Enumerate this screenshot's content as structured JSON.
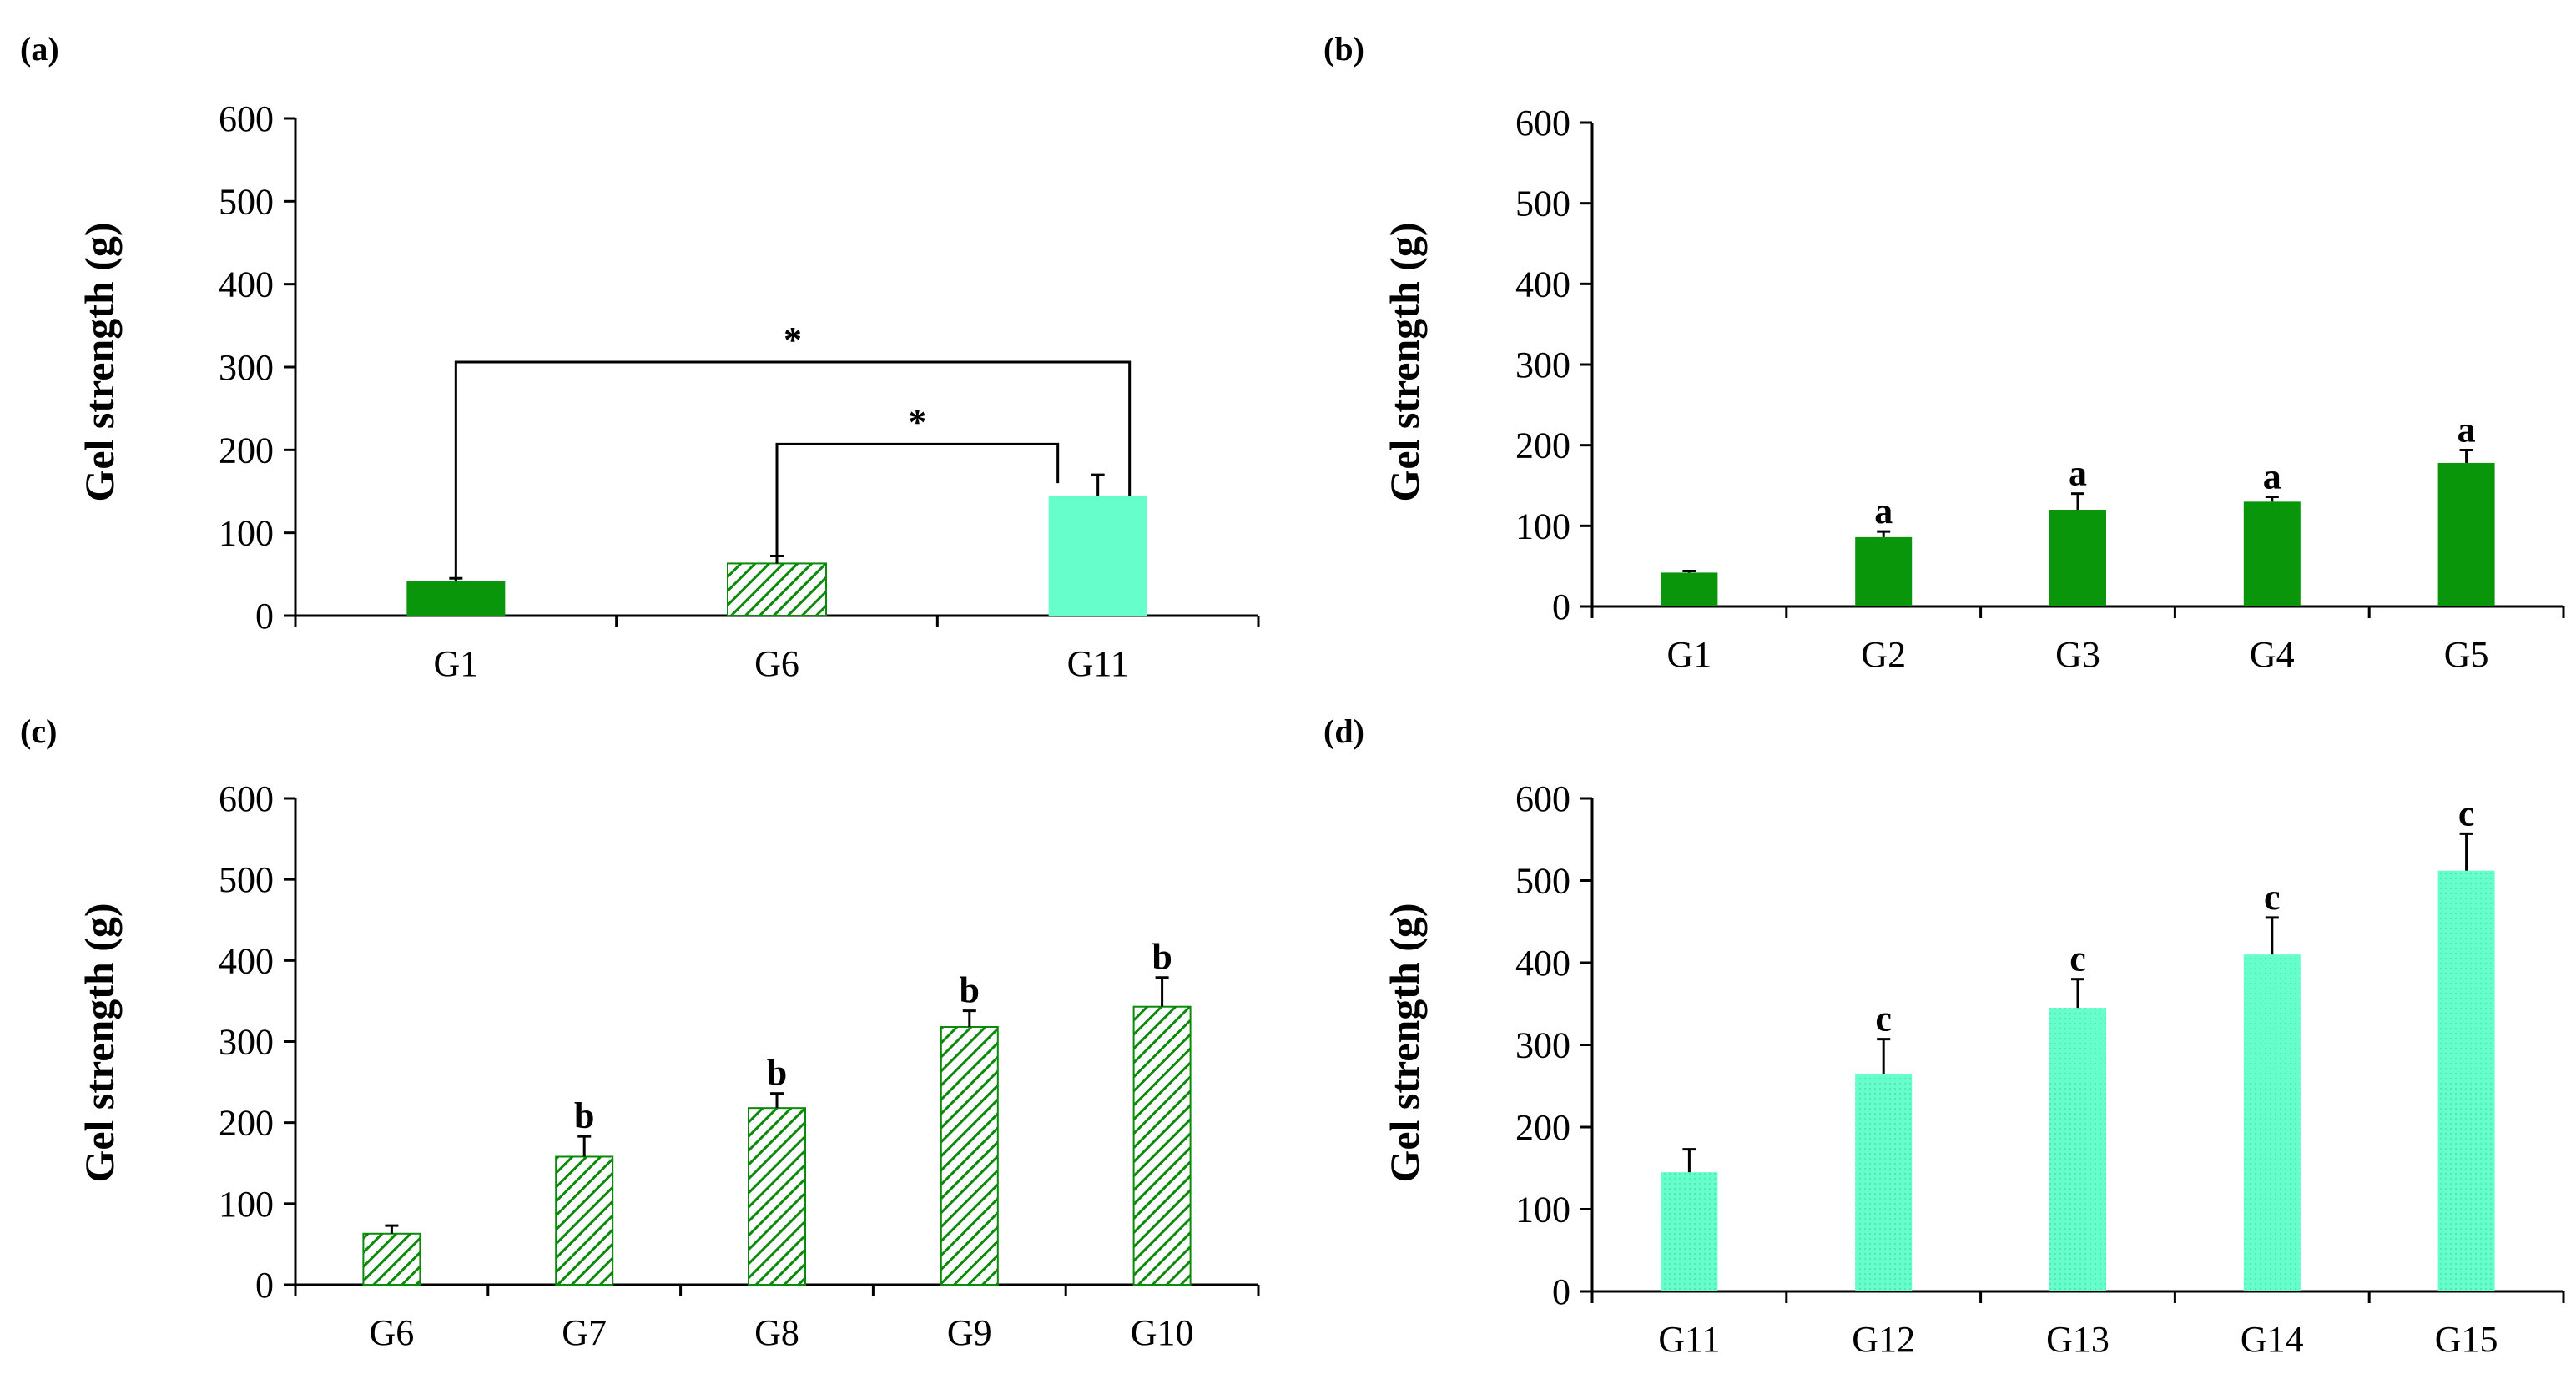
{
  "colors": {
    "dark_green": "#0a960a",
    "aqua": "#66ffcc",
    "hatch_green": "#0a8a0a",
    "axis": "#000000"
  },
  "chart_data": [
    {
      "id": "a",
      "panel_label": "(a)",
      "type": "bar",
      "ylabel": "Gel strength (g)",
      "ylim": [
        0,
        600
      ],
      "yticks": [
        "0",
        "100",
        "200",
        "300",
        "400",
        "500",
        "600"
      ],
      "categories": [
        "G1",
        "G6",
        "G11"
      ],
      "values": [
        42,
        63,
        145
      ],
      "errors": [
        3,
        9,
        25
      ],
      "fills": [
        "solid-green",
        "hatch-green",
        "solid-aqua"
      ],
      "bar_labels": [
        "",
        "",
        ""
      ],
      "brackets": [
        {
          "from": "G1",
          "to": "G11",
          "level": 306,
          "label": "*"
        },
        {
          "from": "G6",
          "to": "G11",
          "level": 207,
          "label": "*"
        }
      ]
    },
    {
      "id": "b",
      "panel_label": "(b)",
      "type": "bar",
      "ylabel": "Gel strength (g)",
      "ylim": [
        0,
        600
      ],
      "yticks": [
        "0",
        "100",
        "200",
        "300",
        "400",
        "500",
        "600"
      ],
      "categories": [
        "G1",
        "G2",
        "G3",
        "G4",
        "G5"
      ],
      "values": [
        42,
        86,
        120,
        130,
        178
      ],
      "errors": [
        2,
        7,
        20,
        6,
        16
      ],
      "fills": [
        "solid-green",
        "solid-green",
        "solid-green",
        "solid-green",
        "solid-green"
      ],
      "bar_labels": [
        "",
        "a",
        "a",
        "a",
        "a"
      ],
      "brackets": []
    },
    {
      "id": "c",
      "panel_label": "(c)",
      "type": "bar",
      "ylabel": "Gel strength (g)",
      "ylim": [
        0,
        600
      ],
      "yticks": [
        "0",
        "100",
        "200",
        "300",
        "400",
        "500",
        "600"
      ],
      "categories": [
        "G6",
        "G7",
        "G8",
        "G9",
        "G10"
      ],
      "values": [
        63,
        158,
        218,
        318,
        343
      ],
      "errors": [
        10,
        25,
        18,
        20,
        36
      ],
      "fills": [
        "hatch-green",
        "hatch-green",
        "hatch-green",
        "hatch-green",
        "hatch-green"
      ],
      "bar_labels": [
        "",
        "b",
        "b",
        "b",
        "b"
      ],
      "brackets": []
    },
    {
      "id": "d",
      "panel_label": "(d)",
      "type": "bar",
      "ylabel": "Gel strength (g)",
      "ylim": [
        0,
        600
      ],
      "yticks": [
        "0",
        "100",
        "200",
        "300",
        "400",
        "500",
        "600"
      ],
      "categories": [
        "G11",
        "G12",
        "G13",
        "G14",
        "G15"
      ],
      "values": [
        145,
        265,
        345,
        410,
        512
      ],
      "errors": [
        28,
        42,
        35,
        45,
        45
      ],
      "fills": [
        "dotted-aqua",
        "dotted-aqua",
        "dotted-aqua",
        "dotted-aqua",
        "dotted-aqua"
      ],
      "bar_labels": [
        "",
        "c",
        "c",
        "c",
        "c"
      ],
      "brackets": []
    }
  ]
}
